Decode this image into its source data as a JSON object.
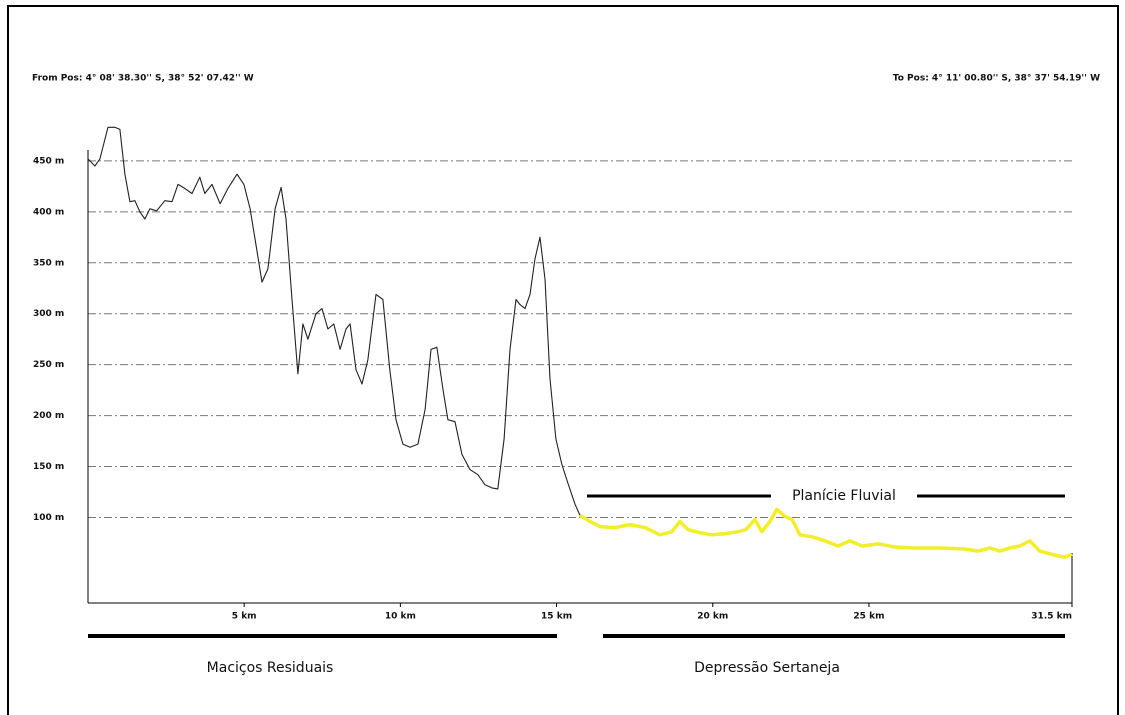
{
  "chart_data": {
    "type": "line",
    "from_label": "From Pos: 4° 08' 38.30'' S, 38° 52' 07.42'' W",
    "to_label": "To Pos: 4° 11' 00.80'' S, 38° 37' 54.19'' W",
    "annotations": [
      "Planície Fluvial",
      "Maciços Residuais",
      "Depressão Sertaneja"
    ],
    "xlim": [
      0,
      31.5
    ],
    "ylim": [
      16,
      500
    ],
    "xticks": [
      {
        "value": 5,
        "label": "5 km"
      },
      {
        "value": 10,
        "label": "10 km"
      },
      {
        "value": 15,
        "label": "15 km"
      },
      {
        "value": 20,
        "label": "20 km"
      },
      {
        "value": 25,
        "label": "25 km"
      },
      {
        "value": 31.5,
        "label": "31.5 km"
      }
    ],
    "yticks": [
      {
        "value": 100,
        "label": "100 m"
      },
      {
        "value": 150,
        "label": "150 m"
      },
      {
        "value": 200,
        "label": "200 m"
      },
      {
        "value": 250,
        "label": "250 m"
      },
      {
        "value": 300,
        "label": "300 m"
      },
      {
        "value": 350,
        "label": "350 m"
      },
      {
        "value": 400,
        "label": "400 m"
      },
      {
        "value": 450,
        "label": "450 m"
      }
    ],
    "grid": true,
    "series": [
      {
        "color": "#222222",
        "x": [
          0,
          0.22,
          0.38,
          0.64,
          0.86,
          1.02,
          1.18,
          1.34,
          1.5,
          1.66,
          1.82,
          1.98,
          2.2,
          2.46,
          2.69,
          2.88,
          3.1,
          3.33,
          3.58,
          3.74,
          3.97,
          4.23,
          4.48,
          4.77,
          4.99,
          5.19,
          5.35,
          5.57,
          5.76,
          5.99,
          6.18,
          6.34,
          6.53,
          6.72,
          6.88,
          7.04,
          7.3,
          7.49,
          7.68,
          7.87,
          8.07,
          8.26,
          8.39,
          8.58,
          8.77,
          8.96,
          9.22,
          9.44,
          9.66,
          9.86,
          10.08,
          10.31,
          10.56,
          10.79,
          10.98,
          11.17,
          11.36,
          11.52,
          11.75,
          11.97,
          12.23,
          12.48,
          12.71,
          12.93,
          13.12,
          13.32,
          13.51,
          13.7,
          13.83,
          13.99,
          14.15,
          14.31,
          14.47,
          14.63,
          14.79,
          14.98,
          15.17,
          15.36,
          15.59,
          15.75
        ],
        "values": [
          452,
          445,
          452,
          483,
          483,
          481,
          437,
          410,
          411,
          400,
          393,
          403,
          401,
          411,
          410,
          427,
          423,
          418,
          434,
          418,
          427,
          408,
          423,
          437,
          427,
          403,
          373,
          331,
          344,
          403,
          424,
          393,
          314,
          241,
          290,
          275,
          300,
          305,
          285,
          290,
          265,
          285,
          290,
          245,
          231,
          255,
          319,
          314,
          245,
          196,
          172,
          169,
          172,
          206,
          265,
          267,
          226,
          196,
          194,
          162,
          147,
          142,
          132,
          129,
          128,
          177,
          265,
          314,
          309,
          305,
          319,
          354,
          375,
          334,
          236,
          177,
          152,
          134,
          113,
          102
        ]
      },
      {
        "color": "#f2ef2a",
        "x": [
          15.75,
          16.07,
          16.39,
          16.87,
          17.35,
          17.83,
          18.31,
          18.69,
          18.95,
          19.21,
          19.59,
          19.97,
          20.39,
          20.81,
          21.06,
          21.35,
          21.57,
          21.83,
          22.05,
          22.31,
          22.54,
          22.79,
          23.18,
          23.59,
          24.01,
          24.39,
          24.78,
          25.29,
          25.83,
          26.47,
          27.27,
          28.07,
          28.49,
          28.87,
          29.19,
          29.51,
          29.83,
          30.15,
          30.47,
          30.95,
          31.27,
          31.5
        ],
        "values": [
          102,
          96,
          91,
          90,
          93,
          90,
          83,
          86,
          96,
          88,
          85,
          83,
          84,
          86,
          88,
          98,
          86,
          96,
          108,
          101,
          98,
          83,
          81,
          77,
          72,
          77,
          72,
          74,
          71,
          70,
          70,
          69,
          67,
          70,
          67,
          70,
          72,
          77,
          67,
          63,
          61,
          64
        ]
      }
    ]
  }
}
